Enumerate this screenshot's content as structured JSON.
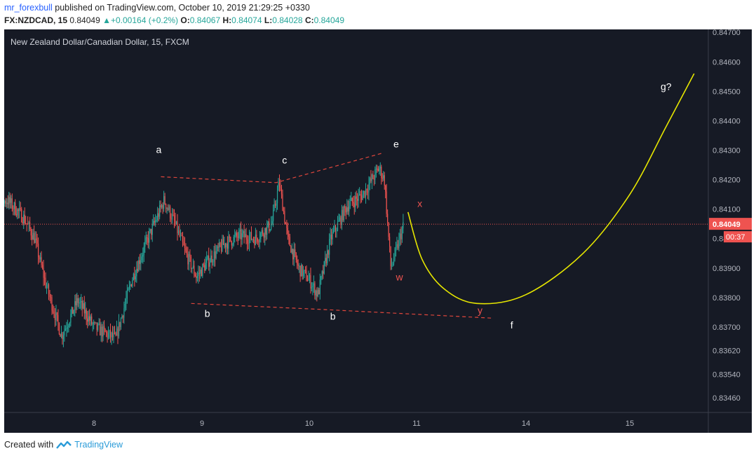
{
  "header": {
    "user": "mr_forexbull",
    "published_text": "published on TradingView.com, October 10, 2019 21:29:25 +0330",
    "symbol": "FX:NZDCAD, 15",
    "last": "0.84049",
    "change": "+0.00164 (+0.2%)",
    "o_label": "O:",
    "o_value": "0.84067",
    "h_label": "H:",
    "h_value": "0.84074",
    "l_label": "L:",
    "l_value": "0.84028",
    "c_label": "C:",
    "c_value": "0.84049"
  },
  "footer": {
    "created_with": "Created with",
    "brand": "TradingView"
  },
  "chart_data": {
    "type": "candlestick",
    "title": "New Zealand Dollar/Canadian Dollar, 15, FXCM",
    "colors": {
      "up": "#26a69a",
      "down": "#ef5350",
      "background": "#161a25",
      "projection": "#e6e600",
      "wave_lines": "#e0463c",
      "price_line": "#ef5350"
    },
    "y_ticks": [
      "0.84700",
      "0.84600",
      "0.84500",
      "0.84400",
      "0.84300",
      "0.84200",
      "0.84100",
      "0.84049",
      "0.84000",
      "0.83900",
      "0.83800",
      "0.83700",
      "0.83620",
      "0.83540",
      "0.83460"
    ],
    "y_range": [
      0.8341,
      0.8471
    ],
    "x_ticks": [
      "8",
      "9",
      "10",
      "11",
      "14",
      "15"
    ],
    "current_price": "0.84049",
    "countdown": "00:37",
    "last_candle_day": 10.88,
    "anchors": [
      [
        7.0,
        0.8411
      ],
      [
        7.2,
        0.8413
      ],
      [
        7.35,
        0.8407
      ],
      [
        7.45,
        0.84
      ],
      [
        7.55,
        0.8385
      ],
      [
        7.7,
        0.8367
      ],
      [
        7.85,
        0.8379
      ],
      [
        8.0,
        0.837
      ],
      [
        8.1,
        0.8368
      ],
      [
        8.2,
        0.8366
      ],
      [
        8.35,
        0.8386
      ],
      [
        8.5,
        0.84
      ],
      [
        8.65,
        0.8413
      ],
      [
        8.75,
        0.8405
      ],
      [
        8.85,
        0.8395
      ],
      [
        8.95,
        0.8387
      ],
      [
        9.05,
        0.8392
      ],
      [
        9.2,
        0.8398
      ],
      [
        9.35,
        0.8401
      ],
      [
        9.5,
        0.84
      ],
      [
        9.65,
        0.8405
      ],
      [
        9.72,
        0.8419
      ],
      [
        9.8,
        0.84
      ],
      [
        9.9,
        0.839
      ],
      [
        10.0,
        0.8386
      ],
      [
        10.08,
        0.8381
      ],
      [
        10.2,
        0.84
      ],
      [
        10.35,
        0.8411
      ],
      [
        10.5,
        0.8415
      ],
      [
        10.65,
        0.8424
      ],
      [
        10.7,
        0.842
      ],
      [
        10.76,
        0.839
      ],
      [
        10.82,
        0.8397
      ],
      [
        10.88,
        0.84049
      ]
    ],
    "wave_lines": [
      [
        [
          8.62,
          0.8421
        ],
        [
          9.69,
          0.8419
        ],
        [
          10.68,
          0.8429
        ]
      ],
      [
        [
          8.9,
          0.8378
        ],
        [
          10.1,
          0.8376
        ],
        [
          11.7,
          0.8373
        ]
      ]
    ],
    "projection": [
      [
        10.92,
        0.8409
      ],
      [
        11.05,
        0.8393
      ],
      [
        11.25,
        0.8383
      ],
      [
        11.55,
        0.8378
      ],
      [
        12.0,
        0.8381
      ],
      [
        12.55,
        0.8395
      ],
      [
        13.0,
        0.8415
      ],
      [
        13.35,
        0.8438
      ],
      [
        13.62,
        0.8456
      ]
    ],
    "labels": [
      {
        "text": "a",
        "x": 8.6,
        "y": 0.8429,
        "color": "#ffffff"
      },
      {
        "text": "c",
        "x": 9.77,
        "y": 0.84255,
        "color": "#ffffff"
      },
      {
        "text": "e",
        "x": 10.81,
        "y": 0.8431,
        "color": "#ffffff"
      },
      {
        "text": "b",
        "x": 9.05,
        "y": 0.83735,
        "color": "#ffffff"
      },
      {
        "text": "b",
        "x": 10.22,
        "y": 0.83725,
        "color": "#ffffff"
      },
      {
        "text": "x",
        "x": 11.03,
        "y": 0.84108,
        "color": "#ef5350"
      },
      {
        "text": "w",
        "x": 10.84,
        "y": 0.83858,
        "color": "#ef5350"
      },
      {
        "text": "y",
        "x": 11.58,
        "y": 0.83745,
        "color": "#ef5350"
      },
      {
        "text": "f",
        "x": 11.87,
        "y": 0.83695,
        "color": "#ffffff"
      },
      {
        "text": "g?",
        "x": 13.35,
        "y": 0.84505,
        "color": "#ffffff"
      }
    ]
  }
}
